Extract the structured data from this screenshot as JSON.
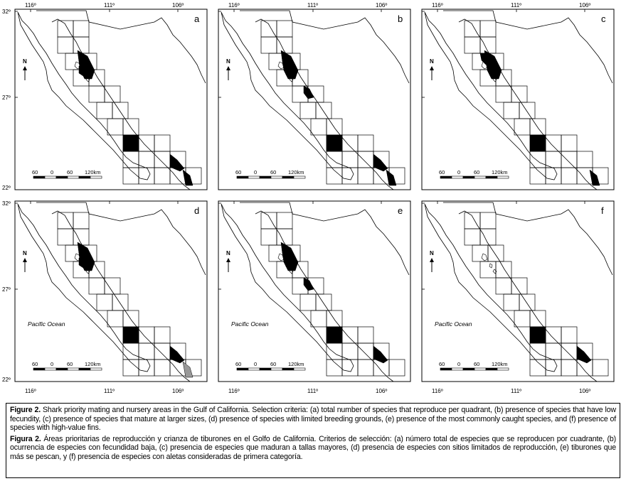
{
  "map_grid": {
    "lat_labels": [
      "32º",
      "27º",
      "22º"
    ],
    "lon_labels": [
      "116º",
      "111º",
      "106º"
    ],
    "north_label": "N",
    "scale_labels": [
      "60",
      "0",
      "60",
      "120km"
    ],
    "ocean_label": "Pacific Ocean",
    "panels": [
      {
        "id": "a",
        "label": "a",
        "show_ocean": false,
        "filled": [
          "c2",
          "c4",
          "c5",
          "c7",
          "c8"
        ],
        "gray": []
      },
      {
        "id": "b",
        "label": "b",
        "show_ocean": false,
        "filled": [
          "c2",
          "c3",
          "c5",
          "c7",
          "c8"
        ],
        "gray": []
      },
      {
        "id": "c",
        "label": "c",
        "show_ocean": false,
        "filled": [
          "c1",
          "c2",
          "c5",
          "c8"
        ],
        "gray": []
      },
      {
        "id": "d",
        "label": "d",
        "show_ocean": true,
        "filled": [
          "c2",
          "c4",
          "c5",
          "c7"
        ],
        "gray": [
          "c8"
        ]
      },
      {
        "id": "e",
        "label": "e",
        "show_ocean": true,
        "filled": [
          "c2",
          "c3",
          "c5",
          "c7"
        ],
        "gray": []
      },
      {
        "id": "f",
        "label": "f",
        "show_ocean": true,
        "filled": [
          "c5",
          "c7"
        ],
        "gray": []
      }
    ]
  },
  "caption": {
    "en_label": "Figure 2.",
    "en_text": " Shark priority mating and nursery areas in the Gulf of California. Selection criteria: (a) total number of species that reproduce per quadrant, (b) presence of species that have low fecundity, (c) presence of species that mature at larger sizes, (d) presence of species with limited breeding grounds, (e) presence of the most commonly caught species, and (f) presence of species with high-value fins.",
    "es_label": "Figura 2.",
    "es_text": " Áreas prioritarias de reproducción y crianza de tiburones en el Golfo de California. Criterios de selección: (a) número total de especies que se reproducen por cuadrante, (b) ocurrencia de especies con fecundidad baja, (c) presencia de especies que maduran a tallas mayores, (d) presencia de especies con sitios limitados de reproducción, (e) tiburones que más se pescan, y (f) presencia de especies con aletas consideradas de primera categoría."
  }
}
